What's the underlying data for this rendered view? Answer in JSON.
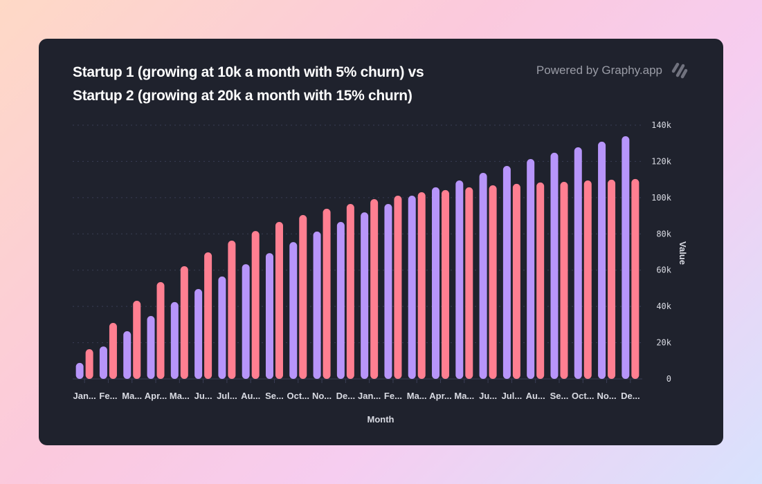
{
  "header": {
    "title_line1": "Startup 1 (growing at 10k a month with 5% churn) vs",
    "title_line2": "Startup 2 (growing at 20k a month with 15% churn)",
    "powered_by": "Powered by Graphy.app",
    "logo_icon": "graphy-logo-icon"
  },
  "colors": {
    "card_background": "#1f222d",
    "series_1": "#b795fa",
    "series_2": "#ff7f91",
    "gridline": "#3a3e55"
  },
  "chart_data": {
    "type": "bar",
    "title": "Startup 1 (growing at 10k a month with 5% churn) vs Startup 2 (growing at 20k a month with 15% churn)",
    "xlabel": "Month",
    "ylabel": "Value",
    "ylim": [
      0,
      140000
    ],
    "yticks": [
      0,
      20000,
      40000,
      60000,
      80000,
      100000,
      120000,
      140000
    ],
    "ytick_labels": [
      "0",
      "20k",
      "40k",
      "60k",
      "80k",
      "100k",
      "120k",
      "140k"
    ],
    "y_axis_position": "right",
    "grid": true,
    "legend": "none",
    "categories": [
      "Jan...",
      "Fe...",
      "Ma...",
      "Apr...",
      "Ma...",
      "Ju...",
      "Jul...",
      "Au...",
      "Se...",
      "Oct...",
      "No...",
      "De...",
      "Jan...",
      "Fe...",
      "Ma...",
      "Apr...",
      "Ma...",
      "Ju...",
      "Jul...",
      "Au...",
      "Se...",
      "Oct...",
      "No...",
      "De..."
    ],
    "series": [
      {
        "name": "Startup 1",
        "color": "#b795fa",
        "values": [
          8800,
          17900,
          26300,
          34700,
          42400,
          49600,
          56500,
          63300,
          69400,
          75500,
          81300,
          86600,
          91900,
          96500,
          101100,
          105700,
          109500,
          113700,
          117500,
          121300,
          124800,
          127800,
          130900,
          133900
        ]
      },
      {
        "name": "Startup 2",
        "color": "#ff7f91",
        "values": [
          16400,
          30900,
          43100,
          53400,
          62200,
          69800,
          76300,
          81600,
          86600,
          90400,
          93900,
          96500,
          99200,
          101100,
          103000,
          104200,
          105700,
          106800,
          107600,
          108400,
          108700,
          109500,
          109900,
          110300
        ]
      }
    ]
  }
}
